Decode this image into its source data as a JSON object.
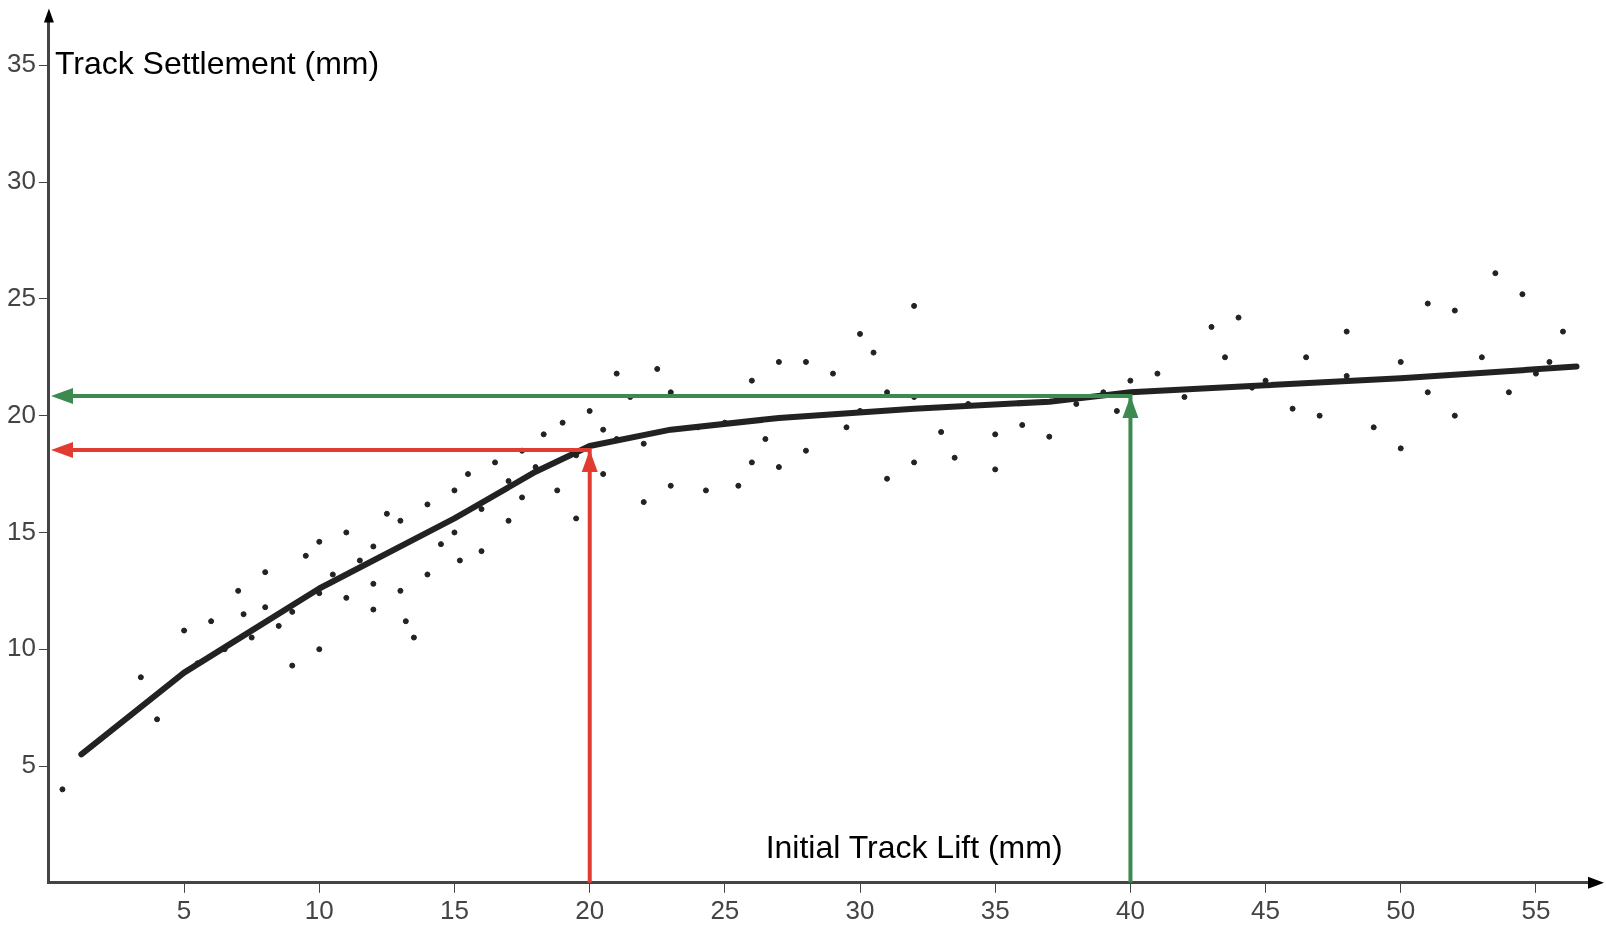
{
  "chart_data": {
    "type": "scatter",
    "xlabel": "Initial Track Lift (mm)",
    "ylabel": "Track Settlement (mm)",
    "xlim": [
      0,
      57
    ],
    "ylim": [
      0,
      37
    ],
    "xticks": [
      5,
      10,
      15,
      20,
      25,
      30,
      35,
      40,
      45,
      50,
      55
    ],
    "yticks": [
      5,
      10,
      15,
      20,
      25,
      30,
      35
    ],
    "grid": false,
    "legend": false,
    "marker": "circle",
    "series": [
      {
        "type": "scatter",
        "color": "#222222",
        "x": [
          0.5,
          3.4,
          4,
          5,
          5.5,
          6,
          6.5,
          7,
          7.2,
          7.5,
          8,
          8,
          8.5,
          9,
          9,
          9.5,
          10,
          10,
          10.5,
          10,
          11,
          11,
          11.5,
          12,
          12,
          12,
          12.5,
          13,
          13,
          13.2,
          13.5,
          14,
          14,
          14.5,
          15,
          15,
          15.2,
          15.5,
          16,
          16,
          16.5,
          17,
          17,
          17.5,
          17.5,
          18,
          18.3,
          18.8,
          19,
          19.5,
          19.5,
          20,
          20.5,
          20.5,
          21,
          21,
          21.5,
          22,
          22,
          22.5,
          23,
          23,
          24,
          24.3,
          25,
          25.5,
          26,
          26,
          26.5,
          27,
          27,
          28,
          28,
          29,
          29.5,
          30,
          30,
          30.5,
          31,
          31,
          32,
          32,
          32,
          33,
          33.5,
          34,
          35,
          35,
          36,
          37,
          38,
          39,
          39.5,
          40,
          41,
          42,
          43,
          43.5,
          44,
          44.5,
          45,
          46,
          46.5,
          47,
          48,
          48,
          49,
          50,
          50,
          51,
          51,
          52,
          52,
          53,
          53.5,
          54,
          54.5,
          55,
          55.5,
          56
        ],
        "values": [
          4.0,
          8.8,
          7,
          10.8,
          9.4,
          11.2,
          10,
          12.5,
          11.5,
          10.5,
          13.3,
          11.8,
          11,
          9.3,
          11.6,
          14,
          12.4,
          14.6,
          13.2,
          10,
          15,
          12.2,
          13.8,
          14.4,
          11.7,
          12.8,
          15.8,
          15.5,
          12.5,
          11.2,
          10.5,
          16.2,
          13.2,
          14.5,
          16.8,
          15,
          13.8,
          17.5,
          16,
          14.2,
          18,
          17.2,
          15.5,
          16.5,
          18.5,
          17.8,
          19.2,
          16.8,
          19.7,
          18.3,
          15.6,
          20.2,
          17.5,
          19.4,
          21.8,
          19,
          20.8,
          18.8,
          16.3,
          22,
          21,
          17,
          19.5,
          16.8,
          19.7,
          17,
          21.5,
          18,
          19,
          22.3,
          17.8,
          22.3,
          18.5,
          21.8,
          19.5,
          23.5,
          20.2,
          22.7,
          17.3,
          21,
          24.7,
          20.8,
          18,
          19.3,
          18.2,
          20.5,
          19.2,
          17.7,
          19.6,
          19.1,
          20.5,
          21,
          20.2,
          21.5,
          21.8,
          20.8,
          23.8,
          22.5,
          24.2,
          21.2,
          21.5,
          20.3,
          22.5,
          20,
          23.6,
          21.7,
          19.5,
          18.6,
          22.3,
          21,
          24.8,
          24.5,
          20,
          22.5,
          26.1,
          21,
          25.2,
          21.8,
          22.3,
          23.6
        ]
      },
      {
        "type": "line",
        "marker": "none",
        "color": "#222222",
        "x": [
          1.2,
          5,
          10,
          15,
          18,
          20,
          23,
          27,
          32,
          37,
          40,
          45,
          50,
          56.5
        ],
        "values": [
          5.5,
          9,
          12.6,
          15.6,
          17.6,
          18.7,
          19.4,
          19.9,
          20.3,
          20.6,
          21,
          21.3,
          21.6,
          22.1
        ]
      }
    ]
  }
}
